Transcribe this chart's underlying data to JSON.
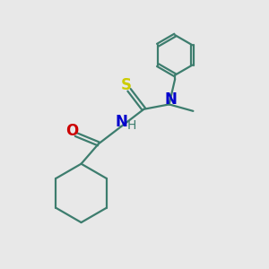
{
  "bg_color": "#e8e8e8",
  "bond_color": "#3d7d6e",
  "N_color": "#0000cc",
  "O_color": "#cc0000",
  "S_color": "#cccc00",
  "linewidth": 1.6,
  "figsize": [
    3.0,
    3.0
  ],
  "dpi": 100,
  "xlim": [
    0,
    10
  ],
  "ylim": [
    0,
    10
  ]
}
